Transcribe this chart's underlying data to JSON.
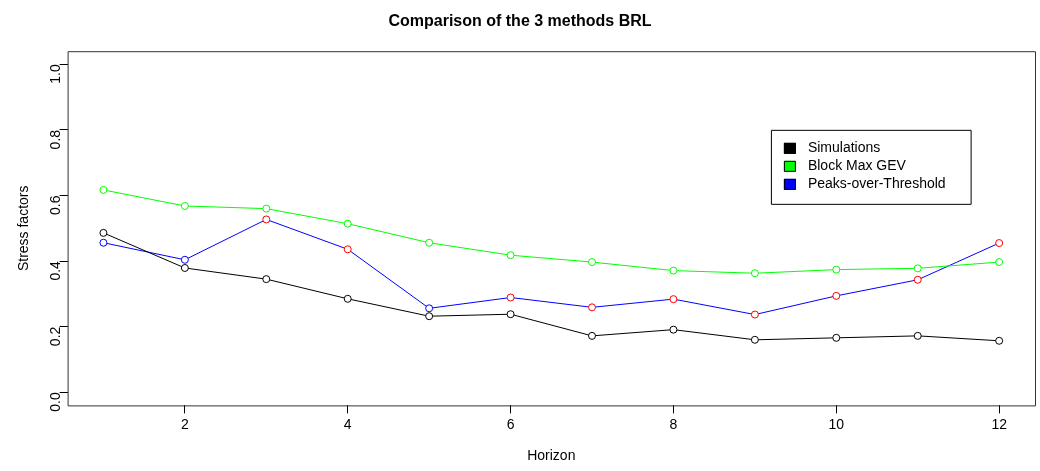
{
  "chart_data": {
    "type": "line",
    "title": "Comparison of the 3 methods BRL",
    "xlabel": "Horizon",
    "ylabel": "Stress factors",
    "x": [
      1,
      2,
      3,
      4,
      5,
      6,
      7,
      8,
      9,
      10,
      11,
      12
    ],
    "series": [
      {
        "name": "Simulations",
        "color": "#000000",
        "values": [
          0.486,
          0.379,
          0.345,
          0.285,
          0.232,
          0.238,
          0.172,
          0.191,
          0.16,
          0.166,
          0.172,
          0.157
        ]
      },
      {
        "name": "Block Max GEV",
        "color": "#00ff00",
        "values": [
          0.617,
          0.568,
          0.56,
          0.514,
          0.456,
          0.418,
          0.397,
          0.371,
          0.363,
          0.374,
          0.378,
          0.397
        ]
      },
      {
        "name": "Peaks-over-Threshold",
        "color": "#0000ff",
        "colors": [
          "#0000ff",
          "#0000ff",
          "#ff0000",
          "#ff0000",
          "#0000ff",
          "#ff0000",
          "#ff0000",
          "#ff0000",
          "#ff0000",
          "#ff0000",
          "#ff0000",
          "#ff0000"
        ],
        "values": [
          0.456,
          0.404,
          0.527,
          0.436,
          0.256,
          0.289,
          0.259,
          0.284,
          0.237,
          0.294,
          0.343,
          0.455
        ]
      }
    ],
    "xlim": [
      0.56,
      12.44
    ],
    "ylim": [
      -0.04,
      1.04
    ],
    "xticks": [
      2,
      4,
      6,
      8,
      10,
      12
    ],
    "yticks": [
      {
        "value": 0,
        "label": "0.0"
      },
      {
        "value": 0.2,
        "label": "0.2"
      },
      {
        "value": 0.4,
        "label": "0.4"
      },
      {
        "value": 0.6,
        "label": "0.6"
      },
      {
        "value": 0.8,
        "label": "0.8"
      },
      {
        "value": 1,
        "label": "1.0"
      }
    ],
    "grid": false,
    "legend": "top right",
    "marker": "circle",
    "line_style": "solid"
  }
}
